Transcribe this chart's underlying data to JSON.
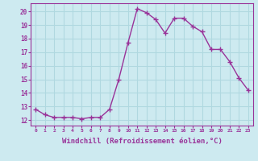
{
  "x": [
    0,
    1,
    2,
    3,
    4,
    5,
    6,
    7,
    8,
    9,
    10,
    11,
    12,
    13,
    14,
    15,
    16,
    17,
    18,
    19,
    20,
    21,
    22,
    23
  ],
  "y": [
    12.8,
    12.4,
    12.2,
    12.2,
    12.2,
    12.1,
    12.2,
    12.2,
    12.8,
    15.0,
    17.7,
    20.2,
    19.9,
    19.4,
    18.4,
    19.5,
    19.5,
    18.9,
    18.5,
    17.2,
    17.2,
    16.3,
    15.1,
    14.2
  ],
  "line_color": "#993399",
  "marker": "+",
  "markersize": 4,
  "linewidth": 1.0,
  "xlabel": "Windchill (Refroidissement éolien,°C)",
  "xlabel_color": "#993399",
  "xlabel_fontsize": 6.5,
  "xtick_labels": [
    "0",
    "1",
    "2",
    "3",
    "4",
    "5",
    "6",
    "7",
    "8",
    "9",
    "10",
    "11",
    "12",
    "13",
    "14",
    "15",
    "16",
    "17",
    "18",
    "19",
    "20",
    "21",
    "22",
    "23"
  ],
  "ytick_values": [
    12,
    13,
    14,
    15,
    16,
    17,
    18,
    19,
    20
  ],
  "ylim": [
    11.6,
    20.6
  ],
  "xlim": [
    -0.5,
    23.5
  ],
  "bg_color": "#cdeaf0",
  "grid_color": "#b0d8e0",
  "tick_color": "#993399",
  "spine_color": "#993399"
}
